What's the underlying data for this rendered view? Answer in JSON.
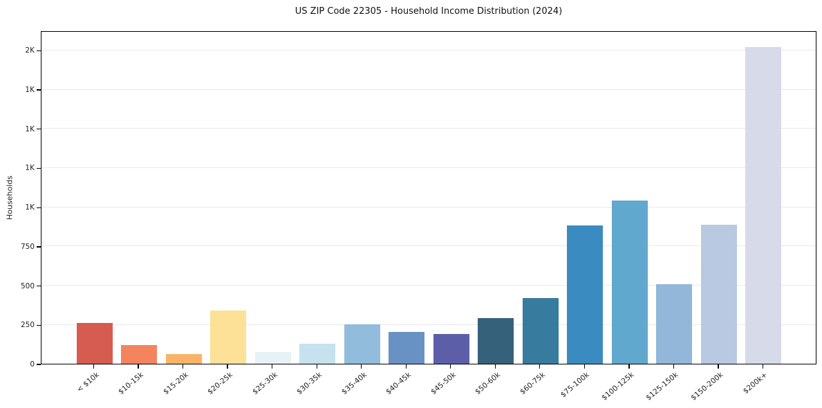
{
  "chart_data": {
    "type": "bar",
    "title": "US ZIP Code 22305 - Household Income Distribution (2024)",
    "xlabel": "",
    "ylabel": "Households",
    "categories": [
      "< $10k",
      "$10-15k",
      "$15-20k",
      "$20-25k",
      "$25-30k",
      "$30-35k",
      "$35-40k",
      "$40-45k",
      "$45-50k",
      "$50-60k",
      "$60-75k",
      "$75-100k",
      "$100-125k",
      "$125-150k",
      "$150-200k",
      "$200k+"
    ],
    "values": [
      260,
      120,
      60,
      340,
      75,
      130,
      250,
      205,
      190,
      290,
      420,
      880,
      1040,
      505,
      885,
      2020
    ],
    "bar_colors": [
      "#d65c52",
      "#f4845e",
      "#f9b469",
      "#fce197",
      "#e7f2f7",
      "#c5e2ee",
      "#91bcdb",
      "#6992c4",
      "#5c5fa8",
      "#36617a",
      "#377b9e",
      "#3a8cc0",
      "#61a8cf",
      "#92b7d9",
      "#b9c9e2",
      "#d7dae8"
    ],
    "y_ticks": [
      {
        "value": 0,
        "label": "0"
      },
      {
        "value": 250,
        "label": "250"
      },
      {
        "value": 500,
        "label": "500"
      },
      {
        "value": 750,
        "label": "750"
      },
      {
        "value": 1000,
        "label": "1K"
      },
      {
        "value": 1250,
        "label": "1K"
      },
      {
        "value": 1500,
        "label": "1K"
      },
      {
        "value": 1750,
        "label": "1K"
      },
      {
        "value": 2000,
        "label": "2K"
      }
    ],
    "ylim": [
      0,
      2125
    ],
    "grid": "horizontal",
    "legend": "none"
  }
}
